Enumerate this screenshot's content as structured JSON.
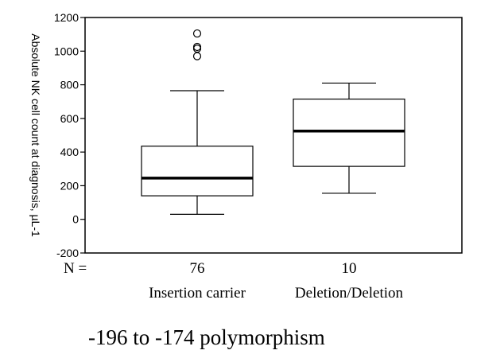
{
  "chart_data": {
    "type": "boxplot",
    "title": "",
    "xlabel": "-196 to -174 polymorphism",
    "ylabel": "Absolute NK cell count at diagnosis, µL-1",
    "ylim": [
      -200,
      1200
    ],
    "yticks": [
      -200,
      0,
      200,
      400,
      600,
      800,
      1000,
      1200
    ],
    "n_label": "N =",
    "groups": [
      {
        "category": "Insertion carrier",
        "n": "76",
        "whisker_low": 30,
        "q1": 140,
        "median": 245,
        "q3": 435,
        "whisker_high": 765,
        "outliers": [
          970,
          1015,
          1025,
          1105
        ]
      },
      {
        "category": "Deletion/Deletion",
        "n": "10",
        "whisker_low": 155,
        "q1": 315,
        "median": 525,
        "q3": 715,
        "whisker_high": 810,
        "outliers": []
      }
    ]
  }
}
